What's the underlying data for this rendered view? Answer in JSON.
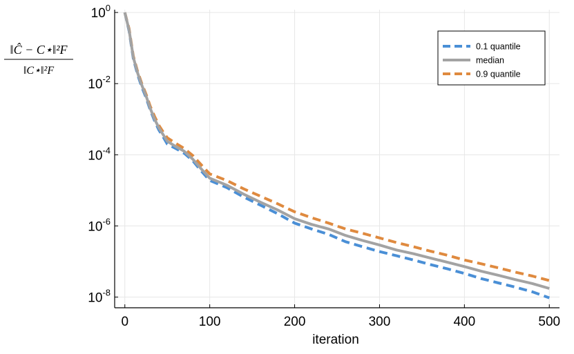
{
  "chart_data": {
    "type": "line",
    "xlabel": "iteration",
    "xlim": [
      -12,
      512
    ],
    "ylim": [
      5e-09,
      1.2
    ],
    "yscale": "log",
    "grid": true,
    "legend_position": "top-right",
    "x_ticks": [
      0,
      100,
      200,
      300,
      400,
      500
    ],
    "x_tick_labels": [
      "0",
      "100",
      "200",
      "300",
      "400",
      "500"
    ],
    "y_ticks": [
      {
        "value": 1,
        "base": "10",
        "exp": "0"
      },
      {
        "value": 0.01,
        "base": "10",
        "exp": "-2"
      },
      {
        "value": 0.0001,
        "base": "10",
        "exp": "-4"
      },
      {
        "value": 1e-06,
        "base": "10",
        "exp": "-6"
      },
      {
        "value": 1e-08,
        "base": "10",
        "exp": "-8"
      }
    ],
    "ylabel": {
      "numerator": "‖Ĉ − C⋆‖²F",
      "denominator": "‖C⋆‖²F"
    },
    "series": [
      {
        "name": "0.1 quantile",
        "color": "#4a8fd6",
        "dash": true,
        "x": [
          0,
          5,
          10,
          15,
          20,
          25,
          30,
          35,
          40,
          45,
          50,
          60,
          70,
          80,
          90,
          100,
          120,
          140,
          160,
          180,
          200,
          220,
          240,
          260,
          280,
          300,
          320,
          340,
          360,
          380,
          400,
          420,
          440,
          460,
          480,
          500
        ],
        "y": [
          1,
          0.3,
          0.05,
          0.018,
          0.008,
          0.004,
          0.0018,
          0.0009,
          0.0005,
          0.00032,
          0.0002,
          0.00015,
          0.00011,
          6.8e-05,
          3.5e-05,
          1.9e-05,
          1.2e-05,
          6.5e-06,
          3.8e-06,
          2.2e-06,
          1.2e-06,
          8.2e-07,
          5.8e-07,
          3.6e-07,
          2.6e-07,
          1.9e-07,
          1.45e-07,
          1.1e-07,
          8.2e-08,
          6.2e-08,
          4.6e-08,
          3.3e-08,
          2.5e-08,
          1.9e-08,
          1.4e-08,
          9.5e-09
        ]
      },
      {
        "name": "median",
        "color": "#a3a3a3",
        "dash": false,
        "x": [
          0,
          5,
          10,
          15,
          20,
          25,
          30,
          35,
          40,
          45,
          50,
          60,
          70,
          80,
          90,
          100,
          120,
          140,
          160,
          180,
          200,
          220,
          240,
          260,
          280,
          300,
          320,
          340,
          360,
          380,
          400,
          420,
          440,
          460,
          480,
          500
        ],
        "y": [
          1,
          0.32,
          0.055,
          0.02,
          0.009,
          0.0045,
          0.002,
          0.001,
          0.00058,
          0.00037,
          0.00024,
          0.00017,
          0.000125,
          7.5e-05,
          4e-05,
          2.2e-05,
          1.4e-05,
          7.8e-06,
          4.6e-06,
          2.8e-06,
          1.6e-06,
          1.1e-06,
          8.2e-07,
          5.4e-07,
          3.9e-07,
          2.9e-07,
          2.1e-07,
          1.65e-07,
          1.25e-07,
          9.5e-08,
          7.2e-08,
          5.3e-08,
          4.1e-08,
          3.1e-08,
          2.4e-08,
          1.75e-08
        ]
      },
      {
        "name": "0.9 quantile",
        "color": "#df8a3f",
        "dash": true,
        "x": [
          0,
          5,
          10,
          15,
          20,
          25,
          30,
          35,
          40,
          45,
          50,
          60,
          70,
          80,
          90,
          100,
          120,
          140,
          160,
          180,
          200,
          220,
          240,
          260,
          280,
          300,
          320,
          340,
          360,
          380,
          400,
          420,
          440,
          460,
          480,
          500
        ],
        "y": [
          1,
          0.35,
          0.06,
          0.022,
          0.01,
          0.005,
          0.0023,
          0.0012,
          0.00068,
          0.00044,
          0.0003,
          0.00021,
          0.00015,
          9.5e-05,
          5.2e-05,
          2.9e-05,
          1.9e-05,
          1.1e-05,
          6.8e-06,
          4.2e-06,
          2.5e-06,
          1.7e-06,
          1.2e-06,
          8.2e-07,
          6.2e-07,
          4.6e-07,
          3.4e-07,
          2.6e-07,
          1.95e-07,
          1.5e-07,
          1.1e-07,
          8.6e-08,
          6.6e-08,
          5e-08,
          3.9e-08,
          2.9e-08
        ]
      }
    ]
  }
}
